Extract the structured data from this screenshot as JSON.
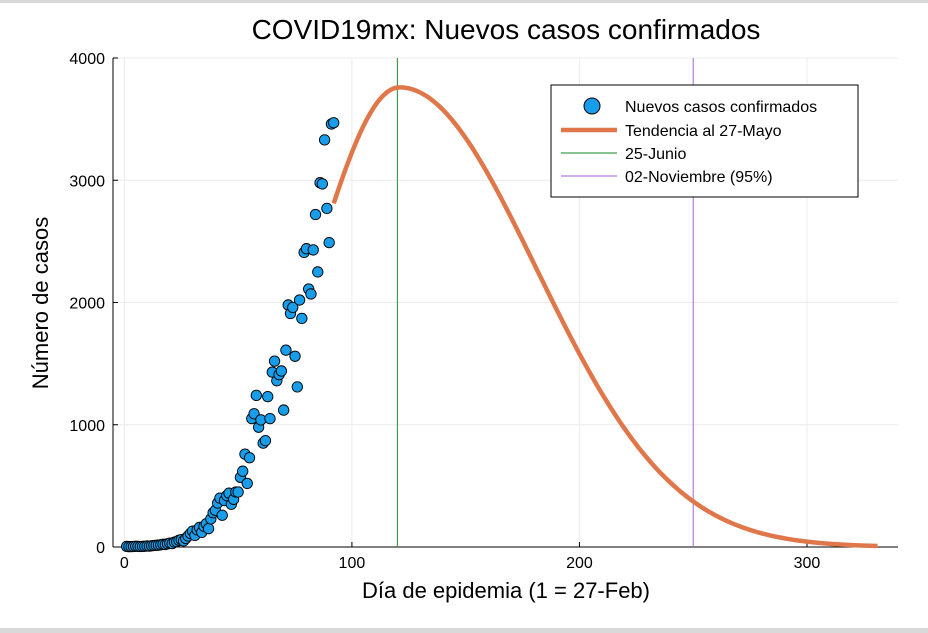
{
  "chart_data": {
    "type": "scatter",
    "title": "COVID19mx: Nuevos casos confirmados",
    "xlabel": "Día de epidemia (1 = 27-Feb)",
    "ylabel": "Número de casos",
    "xlim": [
      -5,
      340
    ],
    "ylim": [
      0,
      4000
    ],
    "xticks": [
      0,
      100,
      200,
      300
    ],
    "yticks": [
      0,
      1000,
      2000,
      3000,
      4000
    ],
    "grid": true,
    "legend_position": "top-right",
    "series": [
      {
        "name": "Nuevos casos confirmados",
        "kind": "scatter",
        "color": "#189dea",
        "points": [
          [
            1,
            5
          ],
          [
            2,
            3
          ],
          [
            3,
            3
          ],
          [
            4,
            4
          ],
          [
            5,
            6
          ],
          [
            6,
            5
          ],
          [
            7,
            4
          ],
          [
            8,
            5
          ],
          [
            9,
            6
          ],
          [
            10,
            8
          ],
          [
            11,
            7
          ],
          [
            12,
            10
          ],
          [
            13,
            12
          ],
          [
            14,
            14
          ],
          [
            15,
            15
          ],
          [
            16,
            18
          ],
          [
            17,
            22
          ],
          [
            18,
            20
          ],
          [
            19,
            26
          ],
          [
            20,
            32
          ],
          [
            21,
            28
          ],
          [
            22,
            40
          ],
          [
            23,
            45
          ],
          [
            24,
            55
          ],
          [
            25,
            60
          ],
          [
            26,
            50
          ],
          [
            27,
            70
          ],
          [
            28,
            90
          ],
          [
            29,
            110
          ],
          [
            30,
            130
          ],
          [
            31,
            95
          ],
          [
            32,
            140
          ],
          [
            33,
            160
          ],
          [
            34,
            120
          ],
          [
            35,
            170
          ],
          [
            36,
            190
          ],
          [
            37,
            150
          ],
          [
            38,
            230
          ],
          [
            39,
            280
          ],
          [
            40,
            300
          ],
          [
            41,
            360
          ],
          [
            42,
            400
          ],
          [
            43,
            260
          ],
          [
            44,
            380
          ],
          [
            45,
            420
          ],
          [
            46,
            440
          ],
          [
            47,
            350
          ],
          [
            48,
            390
          ],
          [
            49,
            450
          ],
          [
            50,
            450
          ],
          [
            51,
            570
          ],
          [
            52,
            620
          ],
          [
            53,
            760
          ],
          [
            54,
            520
          ],
          [
            55,
            730
          ],
          [
            56,
            1050
          ],
          [
            57,
            1090
          ],
          [
            58,
            1240
          ],
          [
            59,
            980
          ],
          [
            60,
            1040
          ],
          [
            61,
            850
          ],
          [
            62,
            870
          ],
          [
            63,
            1230
          ],
          [
            64,
            1050
          ],
          [
            65,
            1430
          ],
          [
            66,
            1520
          ],
          [
            67,
            1360
          ],
          [
            68,
            1410
          ],
          [
            69,
            1440
          ],
          [
            70,
            1120
          ],
          [
            71,
            1610
          ],
          [
            72,
            1980
          ],
          [
            73,
            1910
          ],
          [
            74,
            1960
          ],
          [
            75,
            1560
          ],
          [
            76,
            1310
          ],
          [
            77,
            2020
          ],
          [
            78,
            1870
          ],
          [
            79,
            2410
          ],
          [
            80,
            2440
          ],
          [
            81,
            2110
          ],
          [
            82,
            2070
          ],
          [
            83,
            2430
          ],
          [
            84,
            2720
          ],
          [
            85,
            2250
          ],
          [
            86,
            2980
          ],
          [
            87,
            2970
          ],
          [
            88,
            3330
          ],
          [
            89,
            2770
          ],
          [
            90,
            2490
          ],
          [
            91,
            3460
          ],
          [
            92,
            3470
          ]
        ]
      },
      {
        "name": "Tendencia al 27-Mayo",
        "kind": "line",
        "color": "#e0774a",
        "curve": {
          "x_start": 92,
          "x_end": 331,
          "peak_x": 121,
          "peak_y": 3760,
          "sigma_left": 38,
          "sigma_right": 60
        }
      },
      {
        "name": "25-Junio",
        "kind": "vline",
        "color": "#3f9e4a",
        "x": 120
      },
      {
        "name": "02-Noviembre (95%)",
        "kind": "vline",
        "color": "#b77ad6",
        "x": 250
      }
    ]
  }
}
